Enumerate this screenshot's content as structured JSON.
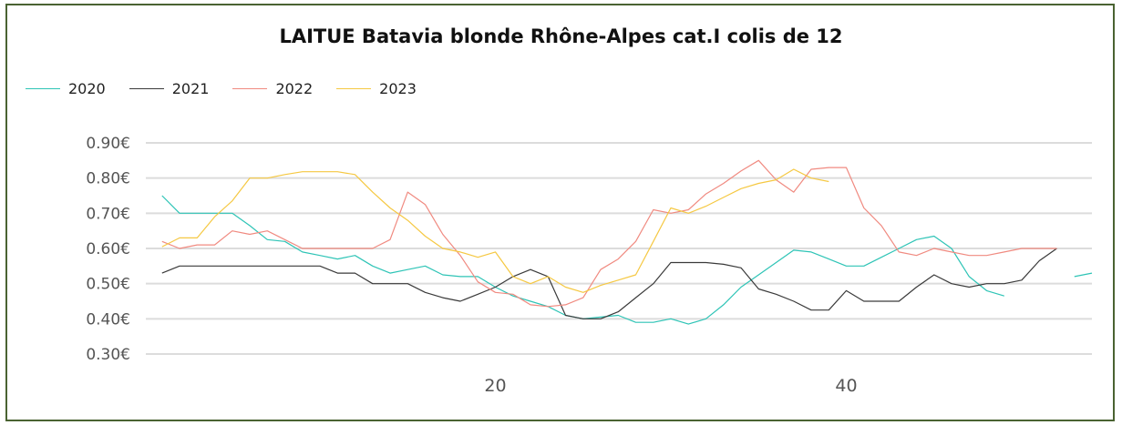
{
  "chart_data": {
    "type": "line",
    "title": "LAITUE Batavia blonde Rhône-Alpes cat.I colis de 12",
    "xlabel": "",
    "ylabel": "",
    "x_tick_labels": [
      "20",
      "40"
    ],
    "x_ticks": [
      20,
      40
    ],
    "xlim": [
      1,
      53
    ],
    "y_tick_labels": [
      "0.90€",
      "0.80€",
      "0.70€",
      "0.60€",
      "0.50€",
      "0.40€",
      "0.30€"
    ],
    "y_ticks": [
      0.9,
      0.8,
      0.7,
      0.6,
      0.5,
      0.4,
      0.3
    ],
    "ylim": [
      0.3,
      0.9
    ],
    "grid": "horizontal",
    "legend_position": "top-left",
    "series": [
      {
        "name": "2020",
        "color": "#2ec4b6",
        "x": [
          1,
          2,
          3,
          4,
          5,
          6,
          7,
          8,
          9,
          10,
          11,
          12,
          13,
          14,
          15,
          16,
          17,
          18,
          19,
          20,
          21,
          22,
          23,
          24,
          25,
          26,
          27,
          28,
          29,
          30,
          31,
          32,
          33,
          34,
          35,
          36,
          37,
          38,
          39,
          40,
          41,
          42,
          43,
          44,
          45,
          46,
          47,
          48,
          49
        ],
        "y": [
          0.75,
          0.7,
          0.7,
          0.7,
          0.7,
          0.665,
          0.625,
          0.62,
          0.59,
          0.58,
          0.57,
          0.58,
          0.55,
          0.53,
          0.54,
          0.55,
          0.525,
          0.52,
          0.52,
          0.49,
          0.465,
          0.45,
          0.435,
          0.41,
          0.4,
          0.405,
          0.41,
          0.39,
          0.39,
          0.4,
          0.385,
          0.4,
          0.44,
          0.49,
          0.525,
          0.56,
          0.595,
          0.59,
          0.57,
          0.55,
          0.55,
          0.575,
          0.6,
          0.625,
          0.635,
          0.6,
          0.52,
          0.48,
          0.465
        ]
      },
      {
        "name": "2021",
        "color": "#3a3a3a",
        "x": [
          1,
          2,
          3,
          4,
          5,
          6,
          7,
          8,
          9,
          10,
          11,
          12,
          13,
          14,
          15,
          16,
          17,
          18,
          19,
          20,
          21,
          22,
          23,
          24,
          25,
          26,
          27,
          28,
          29,
          30,
          31,
          32,
          33,
          34,
          35,
          36,
          37,
          38,
          39,
          40,
          41,
          42,
          43,
          44,
          45,
          46,
          47,
          48,
          49,
          50,
          51,
          52
        ],
        "y": [
          0.53,
          0.55,
          0.55,
          0.55,
          0.55,
          0.55,
          0.55,
          0.55,
          0.55,
          0.55,
          0.53,
          0.53,
          0.5,
          0.5,
          0.5,
          0.475,
          0.46,
          0.45,
          0.47,
          0.49,
          0.52,
          0.54,
          0.52,
          0.41,
          0.4,
          0.4,
          0.42,
          0.46,
          0.5,
          0.56,
          0.56,
          0.56,
          0.555,
          0.545,
          0.485,
          0.47,
          0.45,
          0.425,
          0.425,
          0.48,
          0.45,
          0.45,
          0.45,
          0.49,
          0.525,
          0.5,
          0.49,
          0.5,
          0.5,
          0.51,
          0.565,
          0.6
        ]
      },
      {
        "name": "2022",
        "color": "#f08a80",
        "x": [
          1,
          2,
          3,
          4,
          5,
          6,
          7,
          8,
          9,
          10,
          11,
          12,
          13,
          14,
          15,
          16,
          17,
          18,
          19,
          20,
          21,
          22,
          23,
          24,
          25,
          26,
          27,
          28,
          29,
          30,
          31,
          32,
          33,
          34,
          35,
          36,
          37,
          38,
          39,
          40,
          41,
          42,
          43,
          44,
          45,
          46,
          47,
          48,
          49,
          50,
          51,
          52
        ],
        "y": [
          0.62,
          0.6,
          0.61,
          0.61,
          0.65,
          0.64,
          0.65,
          0.625,
          0.6,
          0.6,
          0.6,
          0.6,
          0.6,
          0.625,
          0.76,
          0.725,
          0.64,
          0.58,
          0.505,
          0.475,
          0.47,
          0.44,
          0.435,
          0.44,
          0.46,
          0.54,
          0.57,
          0.62,
          0.71,
          0.7,
          0.71,
          0.755,
          0.785,
          0.82,
          0.85,
          0.795,
          0.76,
          0.825,
          0.83,
          0.83,
          0.715,
          0.665,
          0.59,
          0.58,
          0.6,
          0.59,
          0.58,
          0.58,
          0.59,
          0.6,
          0.6,
          0.6
        ]
      },
      {
        "name": "2023",
        "color": "#f5c842",
        "x": [
          1,
          2,
          3,
          4,
          5,
          6,
          7,
          8,
          9,
          10,
          11,
          12,
          13,
          14,
          15,
          16,
          17,
          18,
          19,
          20,
          21,
          22,
          23,
          24,
          25,
          26,
          27,
          28,
          29,
          30,
          31,
          32,
          33,
          34,
          35,
          36,
          37,
          38,
          39
        ],
        "y": [
          0.605,
          0.63,
          0.63,
          0.69,
          0.735,
          0.8,
          0.8,
          0.81,
          0.818,
          0.818,
          0.818,
          0.81,
          0.76,
          0.715,
          0.68,
          0.635,
          0.6,
          0.59,
          0.575,
          0.59,
          0.52,
          0.5,
          0.52,
          0.49,
          0.475,
          0.495,
          0.51,
          0.525,
          0.62,
          0.715,
          0.7,
          0.72,
          0.745,
          0.77,
          0.785,
          0.795,
          0.825,
          0.8,
          0.79
        ]
      },
      {
        "name": "",
        "color": "#2ec4b6",
        "x": [
          53,
          54
        ],
        "y": [
          0.52,
          0.53
        ]
      }
    ]
  }
}
